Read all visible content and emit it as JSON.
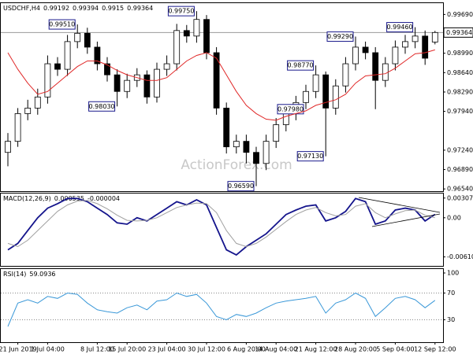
{
  "watermark": "ActionForex.com",
  "chart_data": [
    {
      "type": "candlestick",
      "title": "USDCHF,H4",
      "categories": [
        null,
        "21 Jun 2019",
        null,
        null,
        "1 Jul 04:00",
        null,
        null,
        null,
        null,
        "8 Jul 12:00",
        null,
        null,
        "15 Jul 20:00",
        null,
        null,
        null,
        "23 Jul 04:00",
        null,
        null,
        null,
        "30 Jul 12:00",
        null,
        null,
        null,
        "6 Aug 20:00",
        null,
        null,
        "14 Aug 04:00",
        null,
        null,
        null,
        "21 Aug 12:00",
        null,
        null,
        null,
        "28 Aug 20:00",
        null,
        null,
        null,
        "5 Sep 04:00",
        null,
        null,
        null,
        "12 Sep 12:00"
      ],
      "open": [
        0.972,
        0.974,
        0.979,
        0.98,
        0.982,
        0.988,
        0.987,
        0.992,
        0.9935,
        0.991,
        0.988,
        0.986,
        0.983,
        0.985,
        0.986,
        0.982,
        0.987,
        0.988,
        0.994,
        0.993,
        0.996,
        0.99,
        0.98,
        0.973,
        0.974,
        0.972,
        0.97,
        0.974,
        0.977,
        0.979,
        0.981,
        0.983,
        0.986,
        0.98,
        0.984,
        0.988,
        0.991,
        0.99,
        0.985,
        0.988,
        0.991,
        0.992,
        0.993,
        0.99192
      ],
      "high": [
        0.9755,
        0.98,
        0.9815,
        0.9835,
        0.9895,
        0.9892,
        0.9932,
        0.9951,
        0.9945,
        0.992,
        0.9892,
        0.987,
        0.9862,
        0.9872,
        0.9868,
        0.9882,
        0.9895,
        0.9952,
        0.995,
        0.9975,
        0.9968,
        0.991,
        0.981,
        0.9752,
        0.9752,
        0.973,
        0.9752,
        0.9782,
        0.9802,
        0.9822,
        0.9842,
        0.9877,
        0.9866,
        0.9852,
        0.9892,
        0.9929,
        0.992,
        0.991,
        0.9892,
        0.9922,
        0.9932,
        0.9946,
        0.994,
        0.99394
      ],
      "low": [
        0.9695,
        0.973,
        0.9778,
        0.9788,
        0.9808,
        0.9858,
        0.9858,
        0.9908,
        0.9898,
        0.9868,
        0.9848,
        0.9803,
        0.9818,
        0.9838,
        0.9808,
        0.981,
        0.9858,
        0.9868,
        0.9918,
        0.9918,
        0.9888,
        0.9788,
        0.9718,
        0.9718,
        0.97,
        0.9659,
        0.9688,
        0.9728,
        0.9758,
        0.9778,
        0.9798,
        0.9818,
        0.9713,
        0.9788,
        0.9828,
        0.9868,
        0.9888,
        0.9798,
        0.9838,
        0.9868,
        0.9898,
        0.9908,
        0.9878,
        0.9915
      ],
      "close": [
        0.974,
        0.979,
        0.98,
        0.982,
        0.988,
        0.987,
        0.992,
        0.9935,
        0.991,
        0.988,
        0.986,
        0.983,
        0.985,
        0.986,
        0.982,
        0.987,
        0.988,
        0.994,
        0.993,
        0.996,
        0.99,
        0.98,
        0.973,
        0.974,
        0.972,
        0.97,
        0.974,
        0.977,
        0.979,
        0.981,
        0.983,
        0.986,
        0.98,
        0.984,
        0.988,
        0.991,
        0.99,
        0.985,
        0.988,
        0.991,
        0.992,
        0.993,
        0.989,
        0.99364
      ],
      "series": [
        {
          "color": "#e02828",
          "values": [
            0.99,
            0.987,
            0.9845,
            0.9825,
            0.983,
            0.9845,
            0.986,
            0.9875,
            0.9885,
            0.9885,
            0.9878,
            0.9868,
            0.986,
            0.9855,
            0.985,
            0.985,
            0.9855,
            0.987,
            0.9885,
            0.9895,
            0.99,
            0.989,
            0.986,
            0.983,
            0.9805,
            0.979,
            0.978,
            0.9778,
            0.9785,
            0.979,
            0.9795,
            0.9805,
            0.981,
            0.9815,
            0.9825,
            0.9845,
            0.9858,
            0.986,
            0.9862,
            0.9872,
            0.9885,
            0.9898,
            0.99,
            0.9905
          ]
        }
      ],
      "annotations": [
        {
          "label": "0.99510",
          "value": 0.9951
        },
        {
          "label": "0.99750",
          "value": 0.9975
        },
        {
          "label": "0.98030",
          "value": 0.9803
        },
        {
          "label": "0.96590",
          "value": 0.9659
        },
        {
          "label": "0.98770",
          "value": 0.9877
        },
        {
          "label": "0.97130",
          "value": 0.9713
        },
        {
          "label": "0.99290",
          "value": 0.9929
        },
        {
          "label": "0.97980",
          "value": 0.9798
        },
        {
          "label": "0.99460",
          "value": 0.9946
        }
      ],
      "ylim": [
        0.965,
        0.9988
      ],
      "yticks": [
        {
          "value": 0.9654,
          "label": "0.96540"
        },
        {
          "value": 0.9689,
          "label": "0.96890"
        },
        {
          "value": 0.9724,
          "label": "0.97240"
        },
        {
          "value": 0.9794,
          "label": "0.97940"
        },
        {
          "value": 0.9829,
          "label": "0.98290"
        },
        {
          "value": 0.9864,
          "label": "0.98640"
        },
        {
          "value": 0.9899,
          "label": "0.98990"
        },
        {
          "value": 0.9969,
          "label": "0.99690"
        }
      ],
      "up_color": "#ffffff",
      "down_color": "#000000"
    },
    {
      "type": "line",
      "title": "MACD(12,26,9)",
      "series": [
        {
          "color": "#14148c",
          "values": [
            -0.005,
            -0.004,
            -0.002,
            0.0,
            0.0015,
            0.0022,
            0.003,
            0.003,
            0.0025,
            0.0015,
            0.0005,
            -0.0008,
            -0.001,
            0.0,
            -0.0005,
            0.0005,
            0.0015,
            0.0025,
            0.002,
            0.0028,
            0.002,
            -0.0015,
            -0.005,
            -0.0058,
            -0.0045,
            -0.0035,
            -0.0025,
            -0.001,
            0.0005,
            0.0012,
            0.0018,
            0.002,
            -0.0005,
            0.0,
            0.001,
            0.003,
            0.0025,
            -0.001,
            -0.0005,
            0.0012,
            0.0015,
            0.0012,
            -0.0005,
            0.000535
          ]
        },
        {
          "color": "#a0a0a0",
          "values": [
            -0.004,
            -0.0045,
            -0.0035,
            -0.002,
            -0.0005,
            0.001,
            0.002,
            0.0026,
            0.0027,
            0.0022,
            0.0014,
            0.0004,
            -0.0004,
            -0.0005,
            -0.0004,
            0.0,
            0.0008,
            0.0016,
            0.002,
            0.0023,
            0.0022,
            0.0008,
            -0.002,
            -0.004,
            -0.0045,
            -0.004,
            -0.003,
            -0.0018,
            -0.0006,
            0.0005,
            0.0012,
            0.0016,
            0.0008,
            0.0003,
            0.0005,
            0.0018,
            0.0022,
            0.0008,
            0.0,
            0.0006,
            0.0011,
            0.0012,
            0.0004,
            -4e-06
          ]
        }
      ],
      "ylim": [
        -0.0075,
        0.0039
      ],
      "yticks": [
        -0.006101,
        {
          "value": 0,
          "label": "0.00"
        },
        0.003071
      ]
    },
    {
      "type": "line",
      "title": "RSI(14)",
      "series": [
        {
          "color": "#3a98d8",
          "values": [
            20,
            55,
            60,
            55,
            65,
            62,
            70,
            68,
            55,
            45,
            42,
            40,
            48,
            52,
            45,
            58,
            60,
            70,
            65,
            68,
            55,
            35,
            30,
            38,
            35,
            40,
            48,
            55,
            58,
            60,
            62,
            65,
            40,
            55,
            60,
            70,
            62,
            35,
            48,
            62,
            65,
            60,
            48,
            59.0936
          ]
        }
      ],
      "ylim": [
        0,
        100
      ],
      "yticks": [
        30,
        70,
        100
      ],
      "grid": true
    }
  ]
}
